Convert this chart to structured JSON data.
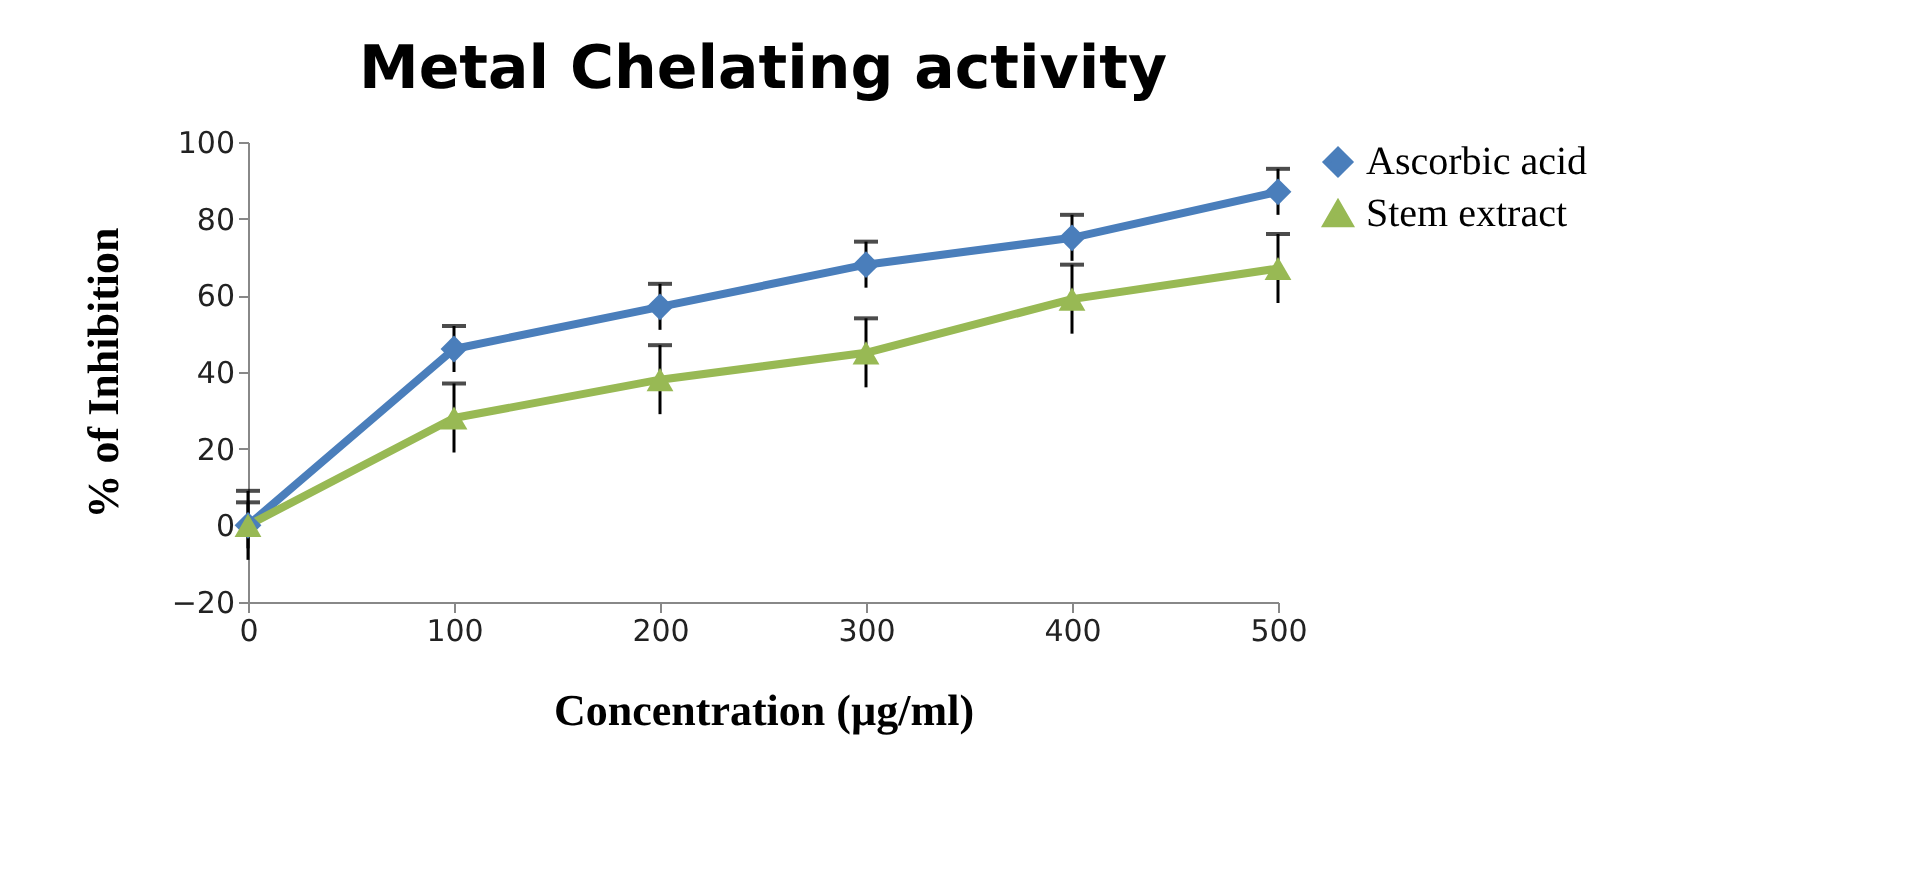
{
  "chart_data": {
    "type": "line",
    "title": "Metal Chelating activity",
    "xlabel": "Concentration (µg/ml)",
    "ylabel": "% of Inhibition",
    "categories": [
      "0",
      "100",
      "200",
      "300",
      "400",
      "500"
    ],
    "series": [
      {
        "name": "Ascorbic acid",
        "color": "#4a7ebb",
        "marker": "diamond",
        "values": [
          0,
          46,
          57,
          68,
          75,
          87
        ],
        "errors": [
          6,
          6,
          6,
          6,
          6,
          6
        ]
      },
      {
        "name": "Stem extract",
        "color": "#98b954",
        "marker": "triangle",
        "values": [
          0,
          28,
          38,
          45,
          59,
          67
        ],
        "errors": [
          9,
          9,
          9,
          9,
          9,
          9
        ]
      }
    ],
    "ylim": [
      -20,
      100
    ],
    "yticks": [
      -20,
      0,
      20,
      40,
      60,
      80,
      100
    ],
    "grid": false,
    "legend": "right",
    "line_style": "solid"
  }
}
